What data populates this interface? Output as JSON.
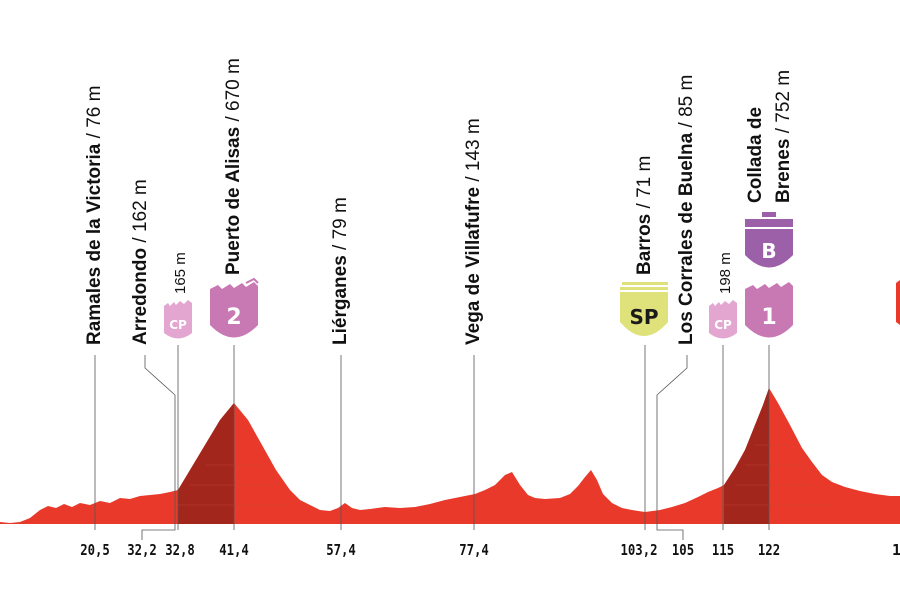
{
  "waypoints": [
    {
      "name": "Ramales de la Victoria",
      "elev": " / 76 m"
    },
    {
      "name": "Arredondo",
      "elev": " / 162 m"
    },
    {
      "name": "",
      "elev": "165 m"
    },
    {
      "name": "Puerto de Alisas",
      "elev": " / 670 m"
    },
    {
      "name": "Liérganes",
      "elev": " / 79 m"
    },
    {
      "name": "Vega de Villafufre",
      "elev": " / 143 m"
    },
    {
      "name": "Barros",
      "elev": " / 71 m"
    },
    {
      "name": "Los Corrales de Buelna",
      "elev": " / 85 m"
    },
    {
      "name": "",
      "elev": "198 m"
    },
    {
      "name": "Collada de",
      "elev": ""
    },
    {
      "name": "Brenes",
      "elev": " / 752 m"
    }
  ],
  "km_marks": [
    "20,5",
    "32,2",
    "32,8",
    "41,4",
    "57,4",
    "77,4",
    "103,2",
    "105",
    "115",
    "122",
    "1"
  ],
  "badges": {
    "cp1": "CP",
    "climb2": "2",
    "sp": "SP",
    "cp2": "CP",
    "climb1": "1",
    "bonus": "B"
  },
  "colors": {
    "profile_fill": "#e8392a",
    "climb_fill": "#a3261c",
    "cp_badge": "#e2a6d0",
    "climb_badge": "#c879b4",
    "sprint_badge": "#dfe17a",
    "bonus_badge": "#9b60a8",
    "partial_badge": "#e8392a"
  }
}
